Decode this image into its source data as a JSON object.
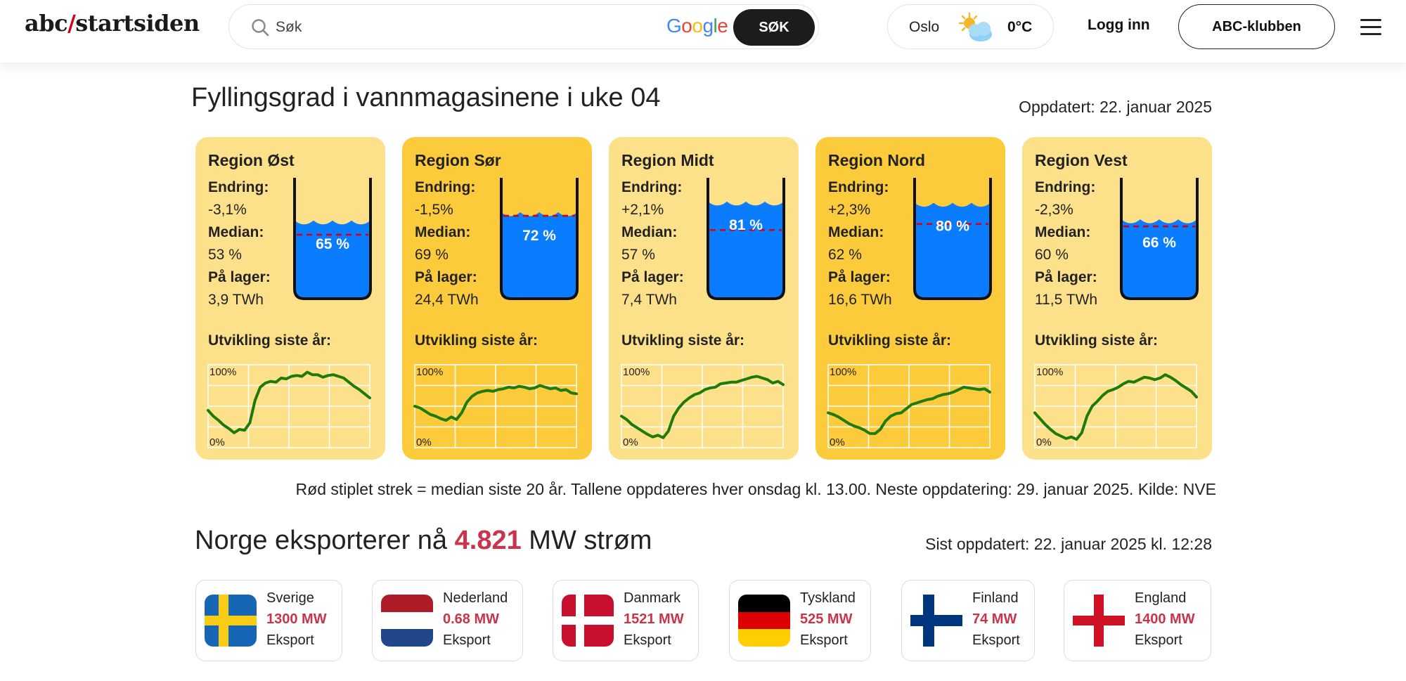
{
  "header": {
    "logo_prefix": "abc",
    "logo_slash": "/",
    "logo_suffix": "startsiden",
    "search_placeholder": "Søk",
    "google_label": "Google",
    "search_button": "SØK",
    "weather": {
      "city": "Oslo",
      "temp": "0°C",
      "icon": "partly-cloudy-icon"
    },
    "login": "Logg inn",
    "club_button": "ABC-klubben",
    "menu_icon": "hamburger-menu-icon"
  },
  "reservoirs": {
    "title": "Fyllingsgrad i vannmagasinene i uke 04",
    "updated": "Oppdatert: 22. januar 2025",
    "labels": {
      "change": "Endring:",
      "median": "Median:",
      "stock": "På lager:",
      "development": "Utvikling siste år:",
      "axis_top": "100%",
      "axis_bottom": "0%"
    },
    "regions": [
      {
        "name": "Region Øst",
        "change": "-3,1%",
        "median": "53 %",
        "stock": "3,9 TWh",
        "fill": "65 %",
        "fill_value": 65,
        "median_value": 53,
        "bg": "#fde08a",
        "trend": [
          45,
          38,
          33,
          27,
          23,
          18,
          22,
          21,
          30,
          57,
          73,
          78,
          80,
          79,
          84,
          83,
          86,
          87,
          86,
          91,
          88,
          88,
          85,
          87,
          88,
          86,
          84,
          79,
          74,
          70,
          65,
          60
        ]
      },
      {
        "name": "Region Sør",
        "change": "-1,5%",
        "median": "69 %",
        "stock": "24,4 TWh",
        "fill": "72 %",
        "fill_value": 72,
        "median_value": 69,
        "bg": "#fccb3c",
        "trend": [
          50,
          48,
          44,
          40,
          38,
          35,
          33,
          37,
          34,
          42,
          55,
          62,
          66,
          68,
          69,
          68,
          70,
          71,
          73,
          72,
          74,
          73,
          71,
          72,
          75,
          73,
          71,
          72,
          69,
          70,
          66,
          65
        ]
      },
      {
        "name": "Region Midt",
        "change": "+2,1%",
        "median": "57 %",
        "stock": "7,4 TWh",
        "fill": "81 %",
        "fill_value": 81,
        "median_value": 57,
        "bg": "#fde08a",
        "trend": [
          38,
          34,
          28,
          24,
          20,
          16,
          13,
          15,
          12,
          20,
          38,
          48,
          55,
          60,
          64,
          66,
          70,
          72,
          73,
          77,
          78,
          79,
          79,
          81,
          83,
          85,
          86,
          84,
          82,
          78,
          80,
          76
        ]
      },
      {
        "name": "Region Nord",
        "change": "+2,3%",
        "median": "62 %",
        "stock": "16,6 TWh",
        "fill": "80 %",
        "fill_value": 80,
        "median_value": 62,
        "bg": "#fccb3c",
        "trend": [
          42,
          40,
          37,
          33,
          29,
          26,
          24,
          21,
          17,
          17,
          22,
          32,
          38,
          41,
          42,
          47,
          52,
          54,
          56,
          58,
          59,
          62,
          64,
          65,
          67,
          70,
          73,
          72,
          71,
          70,
          71,
          67
        ]
      },
      {
        "name": "Region Vest",
        "change": "-2,3%",
        "median": "60 %",
        "stock": "11,5 TWh",
        "fill": "66 %",
        "fill_value": 66,
        "median_value": 60,
        "bg": "#fde08a",
        "trend": [
          42,
          35,
          28,
          22,
          17,
          14,
          11,
          13,
          10,
          18,
          38,
          50,
          56,
          63,
          68,
          70,
          73,
          77,
          80,
          79,
          82,
          85,
          84,
          82,
          84,
          88,
          85,
          81,
          76,
          72,
          68,
          61
        ]
      }
    ],
    "note": "Rød stiplet strek = median siste 20 år. Tallene oppdateres hver onsdag kl. 13.00. Neste oppdatering: 29. januar 2025. Kilde: NVE"
  },
  "export": {
    "title_pre": "Norge eksporterer nå",
    "title_num": "4.821",
    "title_post": "MW strøm",
    "updated": "Sist oppdatert: 22. januar 2025 kl. 12:28",
    "countries": [
      {
        "name": "Sverige",
        "mw": "1300 MW",
        "type": "Eksport",
        "flag": "sweden-flag-icon"
      },
      {
        "name": "Nederland",
        "mw": "0.68 MW",
        "type": "Eksport",
        "flag": "netherlands-flag-icon"
      },
      {
        "name": "Danmark",
        "mw": "1521 MW",
        "type": "Eksport",
        "flag": "denmark-flag-icon"
      },
      {
        "name": "Tyskland",
        "mw": "525 MW",
        "type": "Eksport",
        "flag": "germany-flag-icon"
      },
      {
        "name": "Finland",
        "mw": "74 MW",
        "type": "Eksport",
        "flag": "finland-flag-icon"
      },
      {
        "name": "England",
        "mw": "1400 MW",
        "type": "Eksport",
        "flag": "england-flag-icon"
      }
    ]
  }
}
